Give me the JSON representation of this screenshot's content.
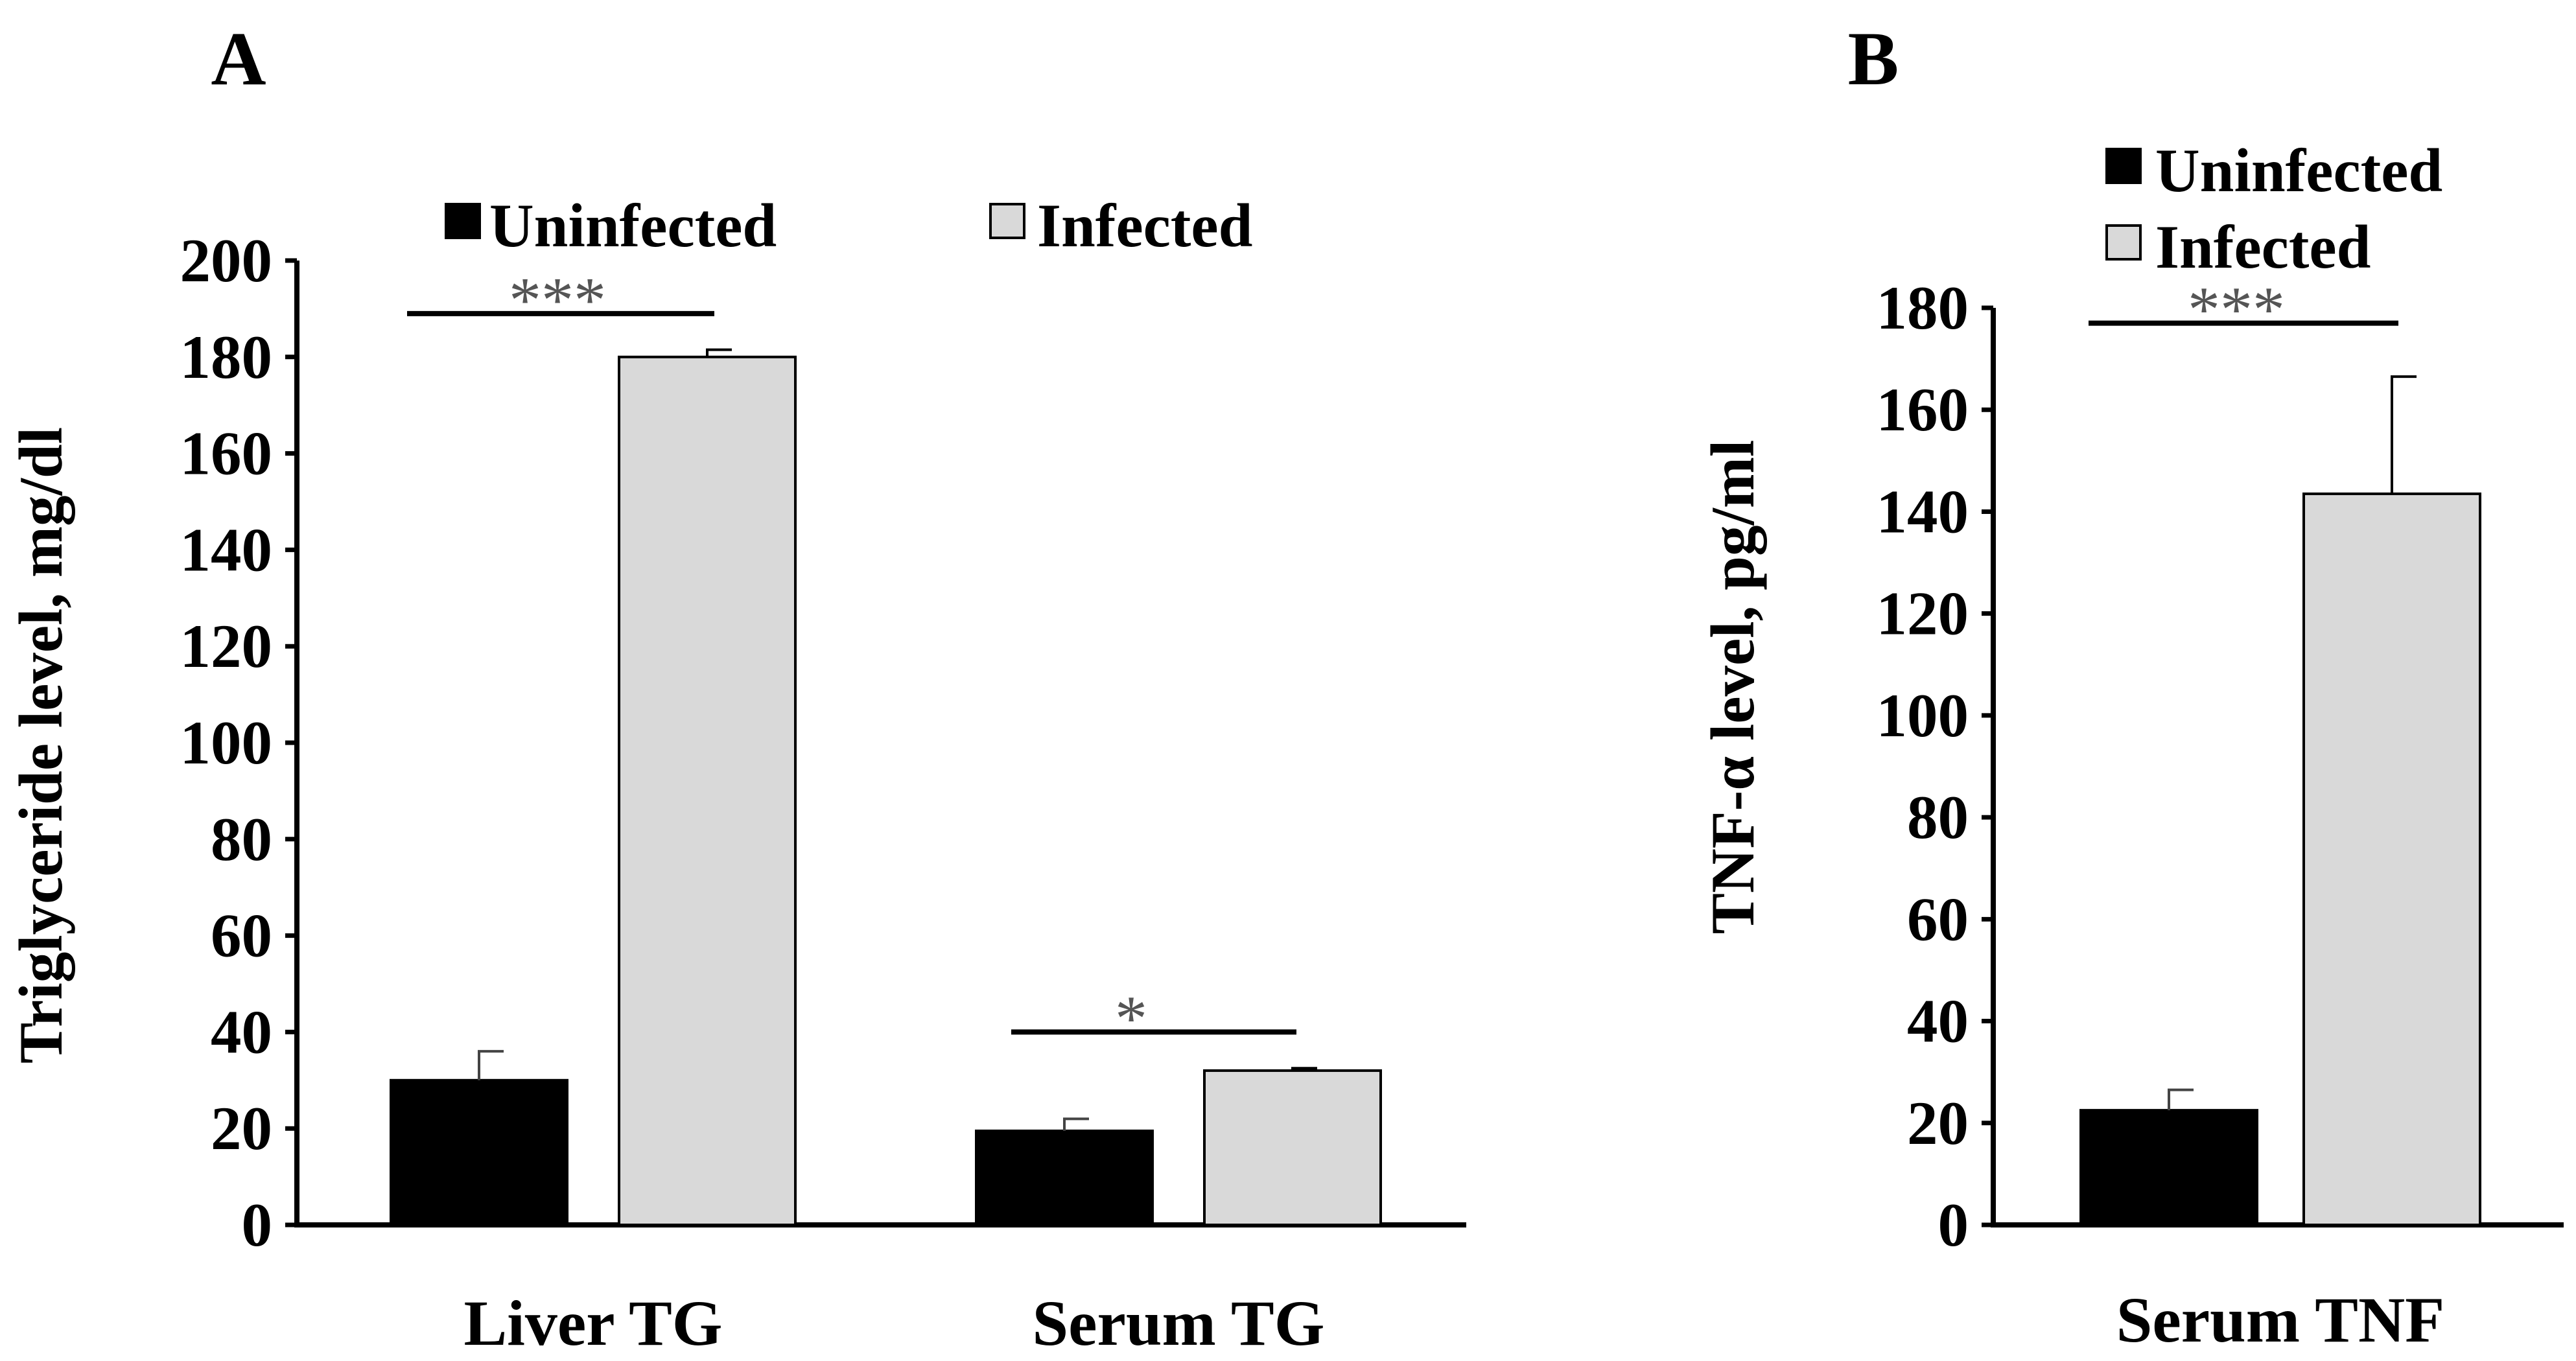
{
  "chart_data": [
    {
      "panel_label": "A",
      "type": "bar",
      "categories": [
        "Liver TG",
        "Serum TG"
      ],
      "series": [
        {
          "name": "Uninfected",
          "color": "#000000",
          "values": [
            30,
            19.5
          ],
          "errors": [
            6,
            2.5
          ]
        },
        {
          "name": "Infected",
          "color": "#d9d9d9",
          "values": [
            180,
            32
          ],
          "errors": [
            1.5,
            0.5
          ]
        }
      ],
      "ylabel": "Triglyceride level, mg/dl",
      "xlabel": "",
      "ylim": [
        0,
        200
      ],
      "yticks": [
        "0",
        "20",
        "40",
        "60",
        "80",
        "100",
        "120",
        "140",
        "160",
        "180",
        "200"
      ],
      "legend_position": "top",
      "significance": [
        {
          "category_index": 0,
          "label": "***",
          "level": 189
        },
        {
          "category_index": 1,
          "label": "*",
          "level": 40
        }
      ]
    },
    {
      "panel_label": "B",
      "type": "bar",
      "categories": [
        "Serum TNF"
      ],
      "series": [
        {
          "name": "Uninfected",
          "color": "#000000",
          "values": [
            22.5
          ],
          "errors": [
            4
          ]
        },
        {
          "name": "Infected",
          "color": "#d9d9d9",
          "values": [
            143.5
          ],
          "errors": [
            23
          ]
        }
      ],
      "ylabel": "TNF-α  level, pg/ml",
      "xlabel": "",
      "ylim": [
        0,
        180
      ],
      "yticks": [
        "0",
        "20",
        "40",
        "60",
        "80",
        "100",
        "120",
        "140",
        "160",
        "180"
      ],
      "legend_position": "top-left",
      "significance": [
        {
          "category_index": 0,
          "label": "***",
          "level": 177
        }
      ]
    }
  ]
}
